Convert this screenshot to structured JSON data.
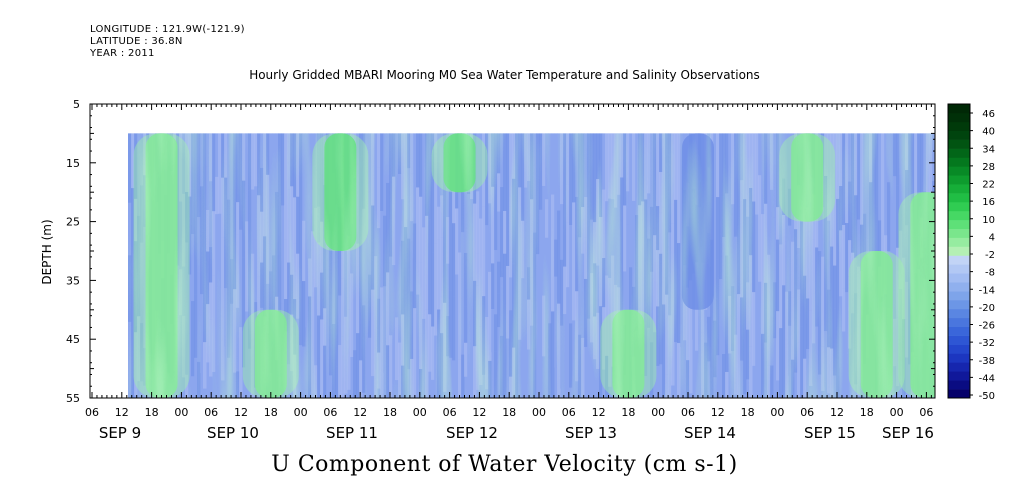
{
  "header": {
    "longitude": "LONGITUDE : 121.9W(-121.9)",
    "latitude": "LATITUDE : 36.8N",
    "year": "YEAR : 2011",
    "title": "Hourly Gridded MBARI Mooring M0 Sea Water Temperature and Salinity Observations"
  },
  "chart_data": {
    "type": "heatmap",
    "title": "Hourly Gridded MBARI Mooring M0 Sea Water Temperature and Salinity Observations",
    "xlabel": "U Component of Water Velocity (cm s-1)",
    "ylabel": "DEPTH (m)",
    "yticks": [
      5,
      15,
      25,
      35,
      45,
      55
    ],
    "ylim": [
      55,
      5
    ],
    "data_depth_range": [
      10,
      55
    ],
    "x_hour_ticks": [
      "06",
      "12",
      "18",
      "00",
      "06",
      "12",
      "18",
      "00",
      "06",
      "12",
      "18",
      "00",
      "06",
      "12",
      "18",
      "00",
      "06",
      "12",
      "18",
      "00",
      "06",
      "12",
      "18",
      "00",
      "06",
      "12",
      "18",
      "00",
      "06",
      "12",
      "18",
      "00",
      "06"
    ],
    "x_day_labels": [
      "SEP  9",
      "SEP 10",
      "SEP 11",
      "SEP 12",
      "SEP 13",
      "SEP 14",
      "SEP 15",
      "SEP 16"
    ],
    "colorbar_labels": [
      "46",
      "40",
      "34",
      "28",
      "22",
      "16",
      "10",
      "4",
      "-2",
      "-8",
      "-14",
      "-20",
      "-26",
      "-32",
      "-38",
      "-44",
      "-50"
    ],
    "colorbar_levels": [
      -50,
      -47,
      -44,
      -41,
      -38,
      -35,
      -32,
      -29,
      -26,
      -23,
      -20,
      -17,
      -14,
      -11,
      -8,
      -5,
      -2,
      1,
      4,
      7,
      10,
      13,
      16,
      19,
      22,
      25,
      28,
      31,
      34,
      37,
      40,
      43,
      46,
      49
    ],
    "colorbar_colors": [
      "#05006a",
      "#0a0c82",
      "#10189a",
      "#1626ae",
      "#1c36c0",
      "#2446cc",
      "#2e56d4",
      "#3a66da",
      "#4a76de",
      "#5a86e2",
      "#6c96e6",
      "#7ea4ea",
      "#90b0ee",
      "#a2bcf2",
      "#b2c8f4",
      "#c2d4f6",
      "#b4f0b4",
      "#96eca0",
      "#7ae68c",
      "#5ee078",
      "#46d864",
      "#30cc52",
      "#20be44",
      "#16ae38",
      "#0e9c2e",
      "#088a26",
      "#04781e",
      "#026618",
      "#015412",
      "#00440e",
      "#003a0a",
      "#003008",
      "#002806"
    ],
    "field_colors": {
      "strong_negative": "#6e8ee6",
      "negative": "#8ca6ee",
      "weak_negative": "#aebff4",
      "weak_positive": "#9ef0a8",
      "positive": "#6ee48a",
      "strong_positive": "#34d460"
    },
    "features": [
      {
        "day": "SEP 9",
        "hour": 20,
        "depth": [
          10,
          55
        ],
        "value": 6
      },
      {
        "day": "SEP 10",
        "hour": 18,
        "depth": [
          40,
          55
        ],
        "value": 10
      },
      {
        "day": "SEP 11",
        "hour": 8,
        "depth": [
          10,
          30
        ],
        "value": 14
      },
      {
        "day": "SEP 12",
        "hour": 8,
        "depth": [
          10,
          20
        ],
        "value": 18
      },
      {
        "day": "SEP 13",
        "hour": 18,
        "depth": [
          40,
          55
        ],
        "value": 8
      },
      {
        "day": "SEP 14",
        "hour": 8,
        "depth": [
          10,
          40
        ],
        "value": -26
      },
      {
        "day": "SEP 15",
        "hour": 6,
        "depth": [
          10,
          25
        ],
        "value": 10
      },
      {
        "day": "SEP 15",
        "hour": 20,
        "depth": [
          30,
          55
        ],
        "value": 8
      },
      {
        "day": "SEP 16",
        "hour": 6,
        "depth": [
          20,
          55
        ],
        "value": 6
      }
    ]
  }
}
